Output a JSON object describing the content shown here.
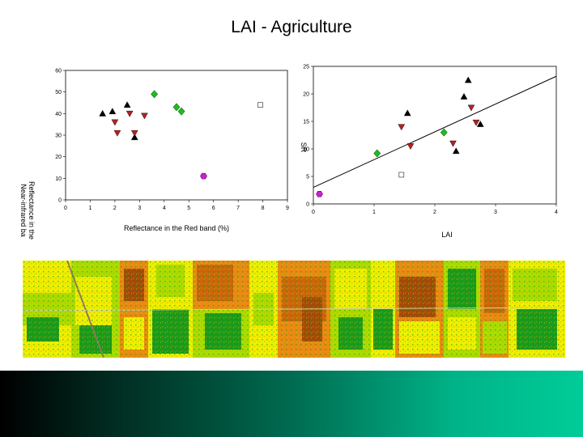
{
  "title": "LAI - Agriculture",
  "chart_data": [
    {
      "type": "scatter",
      "title": "",
      "xlabel": "Reflectance in the Red band (%)",
      "ylabel_lines": [
        "Near-infrared ba",
        "Reflectance in the"
      ],
      "xlim": [
        0,
        9
      ],
      "ylim": [
        0,
        60
      ],
      "xticks": [
        "0",
        "1",
        "2",
        "3",
        "4",
        "5",
        "6",
        "7",
        "8",
        "9"
      ],
      "yticks": [
        "0",
        "10",
        "20",
        "30",
        "40",
        "50",
        "60"
      ],
      "grid": false,
      "series": [
        {
          "marker": "triangle-up",
          "color": "#000000",
          "points": [
            [
              1.5,
              40
            ],
            [
              1.9,
              41
            ],
            [
              2.5,
              44
            ],
            [
              2.8,
              29
            ]
          ]
        },
        {
          "marker": "triangle-down",
          "color": "#b22222",
          "points": [
            [
              2.0,
              36
            ],
            [
              2.1,
              31
            ],
            [
              2.6,
              40
            ],
            [
              2.8,
              31
            ],
            [
              3.2,
              39
            ]
          ]
        },
        {
          "marker": "diamond",
          "color": "#22bb22",
          "points": [
            [
              3.6,
              49
            ],
            [
              4.5,
              43
            ],
            [
              4.7,
              41
            ]
          ]
        },
        {
          "marker": "hexagon",
          "color": "#cc22cc",
          "points": [
            [
              5.6,
              11
            ]
          ]
        },
        {
          "marker": "square-open",
          "color": "#555555",
          "points": [
            [
              7.9,
              44
            ]
          ]
        }
      ]
    },
    {
      "type": "scatter",
      "title": "",
      "xlabel": "LAI",
      "ylabel": "SR",
      "xlim": [
        0,
        4
      ],
      "ylim": [
        0,
        25
      ],
      "xticks": [
        "0",
        "1",
        "2",
        "3",
        "4"
      ],
      "yticks": [
        "0",
        "5",
        "10",
        "15",
        "20",
        "25"
      ],
      "grid": false,
      "trendline": {
        "x": [
          0,
          4
        ],
        "y": [
          3.0,
          23.2
        ]
      },
      "series": [
        {
          "marker": "triangle-up",
          "color": "#000000",
          "points": [
            [
              1.55,
              16.5
            ],
            [
              2.35,
              9.6
            ],
            [
              2.48,
              19.5
            ],
            [
              2.55,
              22.5
            ],
            [
              2.75,
              14.5
            ]
          ]
        },
        {
          "marker": "triangle-down",
          "color": "#b22222",
          "points": [
            [
              1.45,
              14
            ],
            [
              1.6,
              10.5
            ],
            [
              2.3,
              11
            ],
            [
              2.6,
              17.5
            ],
            [
              2.68,
              14.8
            ]
          ]
        },
        {
          "marker": "diamond",
          "color": "#22bb22",
          "points": [
            [
              1.05,
              9.2
            ],
            [
              2.15,
              13
            ]
          ]
        },
        {
          "marker": "hexagon",
          "color": "#cc22cc",
          "points": [
            [
              0.1,
              1.8
            ]
          ]
        },
        {
          "marker": "square-open",
          "color": "#555555",
          "points": [
            [
              1.45,
              5.3
            ]
          ]
        }
      ]
    }
  ],
  "map_colors": {
    "yellow": "#eef000",
    "lime": "#aadd00",
    "green": "#1a9a1a",
    "orange": "#e98a12",
    "darkorange": "#c9660a",
    "brown": "#a24a08"
  }
}
